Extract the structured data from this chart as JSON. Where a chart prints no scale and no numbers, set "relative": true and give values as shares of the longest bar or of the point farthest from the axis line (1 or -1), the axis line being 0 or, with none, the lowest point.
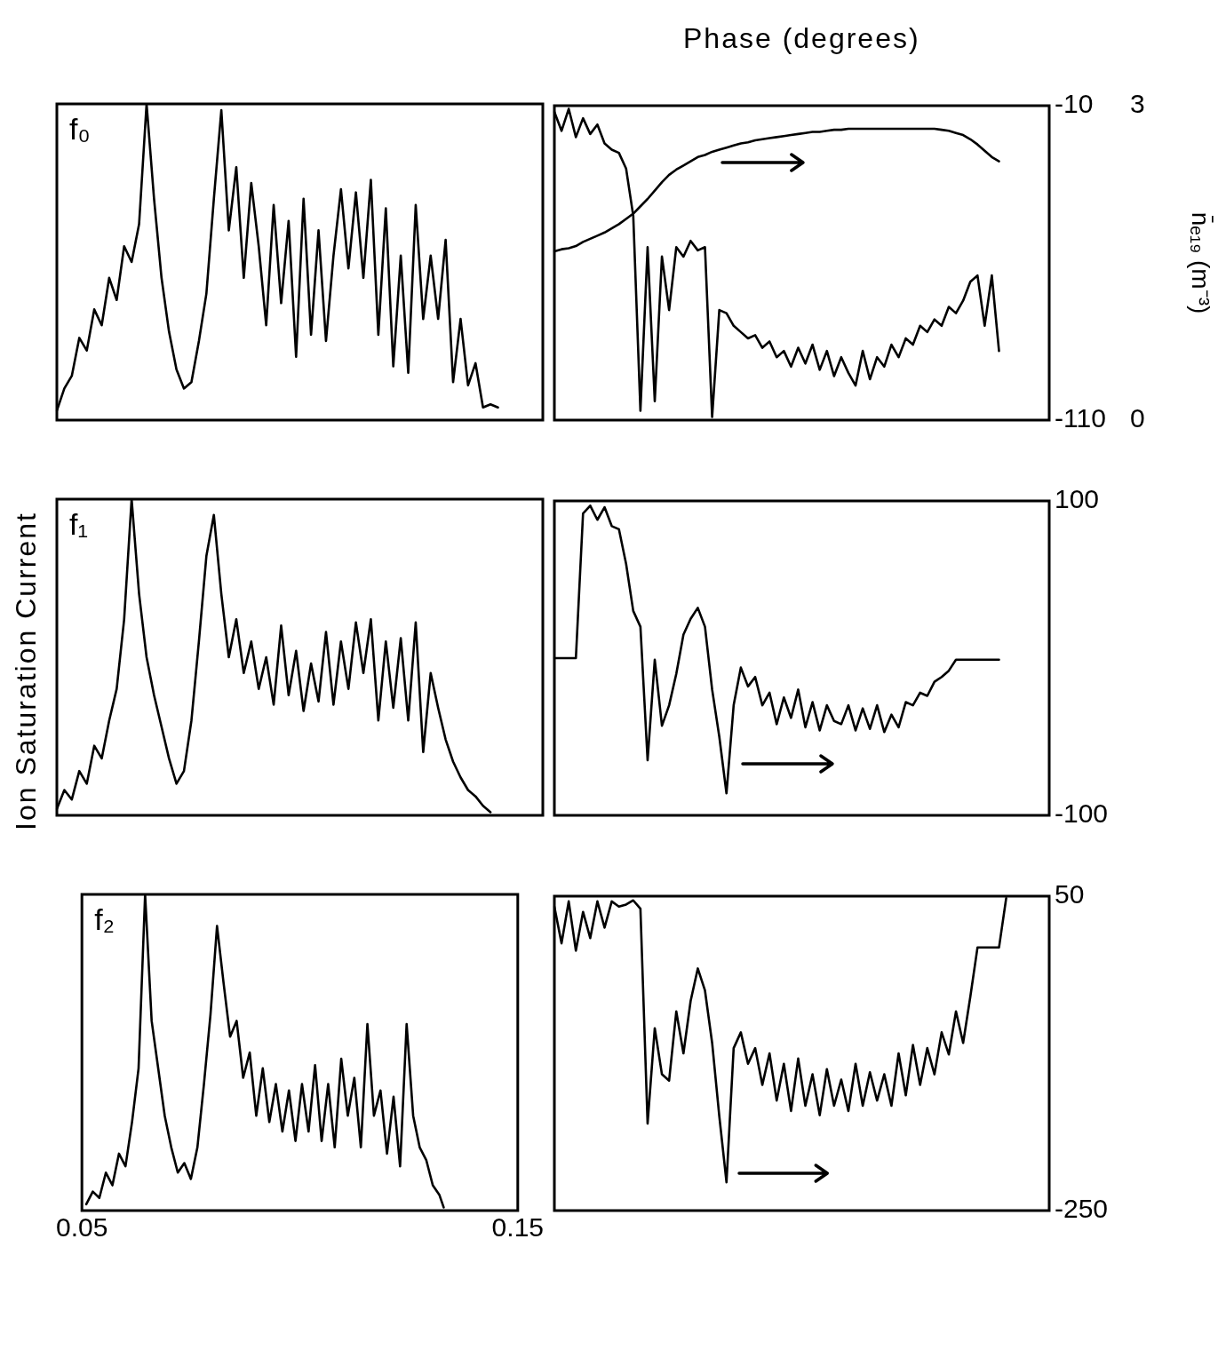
{
  "chart_data": [
    {
      "type": "line",
      "relative": true,
      "annotations": [
        "f₀"
      ],
      "tick_labels": false,
      "categories": [
        null,
        null,
        null,
        null,
        null,
        null,
        null,
        null,
        null,
        null,
        null,
        null,
        null,
        null,
        null,
        null,
        null,
        null,
        null,
        null,
        null,
        null,
        null,
        null,
        null,
        null,
        null,
        null,
        null,
        null,
        null,
        null,
        null,
        null,
        null,
        null,
        null,
        null,
        null,
        null,
        null,
        null,
        null,
        null,
        null,
        null,
        null,
        null,
        null,
        null,
        null,
        null,
        null,
        null,
        null,
        null,
        null,
        null,
        null,
        null,
        null,
        null,
        null,
        null,
        null,
        null
      ],
      "series": [
        {
          "color": "#000000",
          "values": [
            0.03,
            0.1,
            0.14,
            0.26,
            0.22,
            0.35,
            0.3,
            0.45,
            0.38,
            0.55,
            0.5,
            0.62,
            1.0,
            0.7,
            0.45,
            0.28,
            0.16,
            0.1,
            0.12,
            0.25,
            0.4,
            0.7,
            0.98,
            0.6,
            0.8,
            0.45,
            0.75,
            0.55,
            0.3,
            0.68,
            0.37,
            0.63,
            0.2,
            0.7,
            0.27,
            0.6,
            0.25,
            0.52,
            0.73,
            0.48,
            0.72,
            0.45,
            0.76,
            0.27,
            0.67,
            0.17,
            0.52,
            0.15,
            0.68,
            0.32,
            0.52,
            0.32,
            0.57,
            0.12,
            0.32,
            0.11,
            0.18,
            0.04,
            0.05,
            0.04,
            null,
            null,
            null,
            null,
            null,
            null
          ]
        }
      ]
    },
    {
      "type": "line",
      "ylabel": "Phase (degrees)",
      "y2label": "n̄ₑ₁₉ (m⁻³)",
      "tick_labels": "y",
      "ylim": [
        -110,
        -10
      ],
      "yticks": [
        -110,
        -10
      ],
      "y2lim": [
        0,
        3
      ],
      "y2ticks": [
        0,
        3
      ],
      "categories": [
        null,
        null,
        null,
        null,
        null,
        null,
        null,
        null,
        null,
        null,
        null,
        null,
        null,
        null,
        null,
        null,
        null,
        null,
        null,
        null,
        null,
        null,
        null,
        null,
        null,
        null,
        null,
        null,
        null,
        null,
        null,
        null,
        null,
        null,
        null,
        null,
        null,
        null,
        null,
        null,
        null,
        null,
        null,
        null,
        null,
        null,
        null,
        null,
        null,
        null,
        null,
        null,
        null,
        null,
        null,
        null,
        null,
        null,
        null,
        null,
        null,
        null,
        null,
        null,
        null,
        null,
        null,
        null,
        null,
        null
      ],
      "series": [
        {
          "color": "#000000",
          "values": [
            -12,
            -18,
            -11,
            -20,
            -14,
            -19,
            -16,
            -22,
            -24,
            -25,
            -30,
            -45,
            -107,
            -55,
            -104,
            -58,
            -75,
            -55,
            -58,
            -53,
            -56,
            -55,
            -109,
            -75,
            -76,
            -80,
            -82,
            -84,
            -83,
            -87,
            -85,
            -90,
            -88,
            -93,
            -87,
            -92,
            -86,
            -94,
            -88,
            -96,
            -90,
            -95,
            -99,
            -88,
            -97,
            -90,
            -93,
            -86,
            -90,
            -84,
            -86,
            -80,
            -82,
            -78,
            -80,
            -74,
            -76,
            -72,
            -66,
            -64,
            -80,
            -64,
            -88,
            null,
            null,
            null,
            null,
            null,
            null,
            null
          ]
        },
        {
          "color": "#000000",
          "axis": "y2",
          "values": [
            1.61,
            1.63,
            1.64,
            1.66,
            1.7,
            1.73,
            1.76,
            1.79,
            1.83,
            1.87,
            1.92,
            1.97,
            2.04,
            2.11,
            2.19,
            2.27,
            2.34,
            2.39,
            2.43,
            2.47,
            2.51,
            2.53,
            2.56,
            2.58,
            2.6,
            2.62,
            2.64,
            2.65,
            2.67,
            2.68,
            2.69,
            2.7,
            2.71,
            2.72,
            2.73,
            2.74,
            2.75,
            2.75,
            2.76,
            2.77,
            2.77,
            2.78,
            2.78,
            2.78,
            2.78,
            2.78,
            2.78,
            2.78,
            2.78,
            2.78,
            2.78,
            2.78,
            2.78,
            2.78,
            2.77,
            2.76,
            2.74,
            2.72,
            2.68,
            2.63,
            2.57,
            2.51,
            2.47,
            null,
            null,
            null,
            null,
            null,
            null,
            null
          ]
        }
      ]
    },
    {
      "type": "line",
      "relative": true,
      "annotations": [
        "f₁"
      ],
      "tick_labels": false,
      "categories": [
        null,
        null,
        null,
        null,
        null,
        null,
        null,
        null,
        null,
        null,
        null,
        null,
        null,
        null,
        null,
        null,
        null,
        null,
        null,
        null,
        null,
        null,
        null,
        null,
        null,
        null,
        null,
        null,
        null,
        null,
        null,
        null,
        null,
        null,
        null,
        null,
        null,
        null,
        null,
        null,
        null,
        null,
        null,
        null,
        null,
        null,
        null,
        null,
        null,
        null,
        null,
        null,
        null,
        null,
        null,
        null,
        null,
        null,
        null,
        null,
        null,
        null,
        null,
        null,
        null,
        null
      ],
      "series": [
        {
          "color": "#000000",
          "values": [
            0.02,
            0.08,
            0.05,
            0.14,
            0.1,
            0.22,
            0.18,
            0.3,
            0.4,
            0.62,
            1.0,
            0.7,
            0.5,
            0.38,
            0.28,
            0.18,
            0.1,
            0.14,
            0.3,
            0.55,
            0.82,
            0.95,
            0.7,
            0.5,
            0.62,
            0.45,
            0.55,
            0.4,
            0.5,
            0.35,
            0.6,
            0.38,
            0.52,
            0.33,
            0.48,
            0.36,
            0.58,
            0.35,
            0.55,
            0.4,
            0.61,
            0.45,
            0.62,
            0.3,
            0.55,
            0.34,
            0.56,
            0.3,
            0.61,
            0.2,
            0.45,
            0.34,
            0.24,
            0.17,
            0.12,
            0.08,
            0.06,
            0.03,
            0.01,
            null,
            null,
            null,
            null,
            null,
            null,
            null
          ]
        }
      ]
    },
    {
      "type": "line",
      "tick_labels": "y",
      "ylim": [
        -100,
        100
      ],
      "yticks": [
        -100,
        100
      ],
      "categories": [
        null,
        null,
        null,
        null,
        null,
        null,
        null,
        null,
        null,
        null,
        null,
        null,
        null,
        null,
        null,
        null,
        null,
        null,
        null,
        null,
        null,
        null,
        null,
        null,
        null,
        null,
        null,
        null,
        null,
        null,
        null,
        null,
        null,
        null,
        null,
        null,
        null,
        null,
        null,
        null,
        null,
        null,
        null,
        null,
        null,
        null,
        null,
        null,
        null,
        null,
        null,
        null,
        null,
        null,
        null,
        null,
        null,
        null,
        null,
        null,
        null,
        null,
        null,
        null,
        null,
        null,
        null,
        null,
        null,
        null
      ],
      "series": [
        {
          "color": "#000000",
          "values": [
            0,
            0,
            0,
            0,
            92,
            97,
            88,
            96,
            84,
            82,
            60,
            30,
            20,
            -65,
            -1,
            -43,
            -30,
            -10,
            15,
            25,
            32,
            20,
            -20,
            -50,
            -86,
            -30,
            -6,
            -18,
            -12,
            -30,
            -22,
            -42,
            -25,
            -38,
            -20,
            -44,
            -28,
            -46,
            -30,
            -40,
            -42,
            -30,
            -46,
            -32,
            -45,
            -30,
            -47,
            -36,
            -44,
            -28,
            -30,
            -22,
            -24,
            -15,
            -12,
            -8,
            -1,
            -1,
            -1,
            -1,
            -1,
            -1,
            -1,
            null,
            null,
            null,
            null,
            null,
            null,
            null
          ]
        }
      ]
    },
    {
      "type": "line",
      "relative": true,
      "annotations": [
        "f₂"
      ],
      "ylabel": "Ion Saturation Current",
      "tick_labels": "x",
      "xlim": [
        0.05,
        0.15
      ],
      "xticks": [
        0.05,
        0.15
      ],
      "x": [
        0.051,
        0.0525,
        0.054,
        0.0555,
        0.057,
        0.0585,
        0.06,
        0.0615,
        0.063,
        0.0645,
        0.066,
        0.0675,
        0.069,
        0.0705,
        0.072,
        0.0735,
        0.075,
        0.0765,
        0.078,
        0.0795,
        0.081,
        0.0825,
        0.084,
        0.0855,
        0.087,
        0.0885,
        0.09,
        0.0915,
        0.093,
        0.0945,
        0.096,
        0.0975,
        0.099,
        0.1005,
        0.102,
        0.1035,
        0.105,
        0.1065,
        0.108,
        0.1095,
        0.111,
        0.1125,
        0.114,
        0.1155,
        0.117,
        0.1185,
        0.12,
        0.1215,
        0.123,
        0.1245,
        0.126,
        0.1275,
        0.129,
        0.1305,
        0.132,
        0.133
      ],
      "series": [
        {
          "color": "#000000",
          "values": [
            0.02,
            0.06,
            0.04,
            0.12,
            0.08,
            0.18,
            0.14,
            0.28,
            0.45,
            1.0,
            0.6,
            0.45,
            0.3,
            0.2,
            0.12,
            0.15,
            0.1,
            0.2,
            0.4,
            0.62,
            0.9,
            0.72,
            0.55,
            0.6,
            0.42,
            0.5,
            0.3,
            0.45,
            0.28,
            0.4,
            0.25,
            0.38,
            0.22,
            0.4,
            0.25,
            0.46,
            0.22,
            0.4,
            0.2,
            0.48,
            0.3,
            0.42,
            0.2,
            0.59,
            0.3,
            0.38,
            0.18,
            0.36,
            0.14,
            0.59,
            0.3,
            0.2,
            0.16,
            0.08,
            0.05,
            0.01
          ]
        }
      ]
    },
    {
      "type": "line",
      "tick_labels": "y",
      "ylim": [
        -250,
        50
      ],
      "yticks": [
        -250,
        50
      ],
      "categories": [
        null,
        null,
        null,
        null,
        null,
        null,
        null,
        null,
        null,
        null,
        null,
        null,
        null,
        null,
        null,
        null,
        null,
        null,
        null,
        null,
        null,
        null,
        null,
        null,
        null,
        null,
        null,
        null,
        null,
        null,
        null,
        null,
        null,
        null,
        null,
        null,
        null,
        null,
        null,
        null,
        null,
        null,
        null,
        null,
        null,
        null,
        null,
        null,
        null,
        null,
        null,
        null,
        null,
        null,
        null,
        null,
        null,
        null,
        null,
        null,
        null,
        null,
        null,
        null,
        null,
        null,
        null,
        null,
        null,
        null
      ],
      "series": [
        {
          "color": "#000000",
          "values": [
            40,
            5,
            45,
            -2,
            35,
            10,
            45,
            20,
            45,
            40,
            42,
            46,
            38,
            -167,
            -76,
            -120,
            -126,
            -60,
            -100,
            -50,
            -19,
            -40,
            -90,
            -160,
            -223,
            -95,
            -80,
            -110,
            -95,
            -130,
            -100,
            -145,
            -110,
            -155,
            -105,
            -150,
            -120,
            -159,
            -115,
            -150,
            -125,
            -155,
            -110,
            -150,
            -118,
            -145,
            -120,
            -150,
            -100,
            -140,
            -92,
            -130,
            -95,
            -120,
            -80,
            -101,
            -60,
            -90,
            -46,
            1,
            1,
            1,
            1,
            48,
            null,
            null,
            null,
            null,
            null,
            null
          ]
        }
      ]
    }
  ]
}
